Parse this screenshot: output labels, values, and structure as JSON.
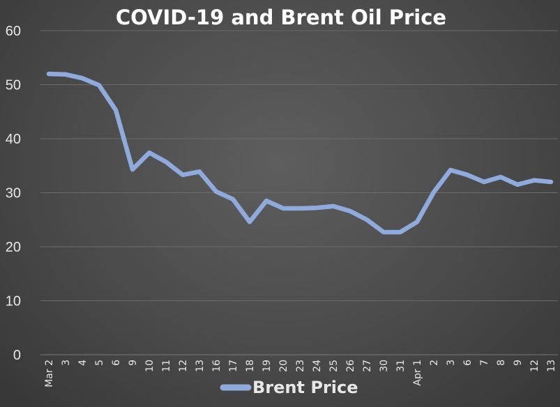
{
  "chart_data": {
    "type": "line",
    "title": "COVID-19 and Brent Oil Price",
    "xlabel": "",
    "ylabel": "",
    "ylim": [
      0,
      60
    ],
    "yticks": [
      0,
      10,
      20,
      30,
      40,
      50,
      60
    ],
    "grid": true,
    "legend_position": "bottom",
    "categories": [
      "Mar 2",
      "3",
      "4",
      "5",
      "6",
      "9",
      "10",
      "11",
      "12",
      "13",
      "16",
      "17",
      "18",
      "19",
      "20",
      "23",
      "24",
      "25",
      "26",
      "27",
      "30",
      "31",
      "Apr 1",
      "2",
      "3",
      "6",
      "7",
      "8",
      "9",
      "12",
      "13"
    ],
    "series": [
      {
        "name": "Brent Price",
        "color": "#8faadc",
        "values": [
          52.0,
          51.9,
          51.2,
          49.9,
          45.3,
          34.3,
          37.4,
          35.7,
          33.3,
          33.9,
          30.2,
          28.8,
          24.6,
          28.5,
          27.1,
          27.1,
          27.2,
          27.5,
          26.6,
          25.0,
          22.7,
          22.7,
          24.6,
          30.1,
          34.2,
          33.3,
          32.0,
          32.9,
          31.5,
          32.3,
          32.0
        ]
      }
    ]
  }
}
